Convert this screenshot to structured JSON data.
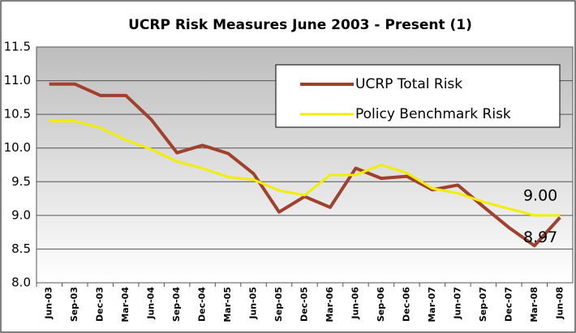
{
  "chart_data": {
    "type": "line",
    "title": "UCRP Risk Measures June 2003 - Present (1)",
    "categories": [
      "Jun-03",
      "Sep-03",
      "Dec-03",
      "Mar-04",
      "Jun-04",
      "Sep-04",
      "Dec-04",
      "Mar-05",
      "Jun-05",
      "Sep-05",
      "Dec-05",
      "Mar-06",
      "Jun-06",
      "Sep-06",
      "Dec-06",
      "Mar-07",
      "Jun-07",
      "Sep-07",
      "Dec-07",
      "Mar-08",
      "Jun-08"
    ],
    "series": [
      {
        "name": "UCRP Total Risk",
        "color": "#a0412d",
        "values": [
          10.95,
          10.95,
          10.78,
          10.78,
          10.42,
          9.93,
          10.04,
          9.92,
          9.62,
          9.05,
          9.28,
          9.12,
          9.7,
          9.55,
          9.58,
          9.38,
          9.45,
          9.13,
          8.82,
          8.55,
          8.97
        ],
        "value_labels": [
          null,
          null,
          null,
          null,
          null,
          null,
          null,
          null,
          null,
          null,
          null,
          null,
          null,
          null,
          null,
          null,
          null,
          null,
          null,
          null,
          "8.97"
        ]
      },
      {
        "name": "Policy Benchmark Risk",
        "color": "#f2ee00",
        "values": [
          10.4,
          10.4,
          10.3,
          10.12,
          9.98,
          9.8,
          9.7,
          9.57,
          9.53,
          9.37,
          9.3,
          9.6,
          9.6,
          9.75,
          9.63,
          9.4,
          9.33,
          9.2,
          9.1,
          9.0,
          9.0
        ],
        "value_labels": [
          null,
          null,
          null,
          null,
          null,
          null,
          null,
          null,
          null,
          null,
          null,
          null,
          null,
          null,
          null,
          null,
          null,
          null,
          null,
          null,
          "9.00"
        ]
      }
    ],
    "ylim": [
      8.0,
      11.5
    ],
    "yticks": [
      {
        "value": 8.0,
        "label": "8.0"
      },
      8.5,
      {
        "value": 9.0,
        "label": "9.0"
      },
      9.5,
      {
        "value": 10.0,
        "label": "10.0"
      },
      10.5,
      {
        "value": 11.0,
        "label": "11.0"
      },
      11.5
    ],
    "grid": true
  }
}
